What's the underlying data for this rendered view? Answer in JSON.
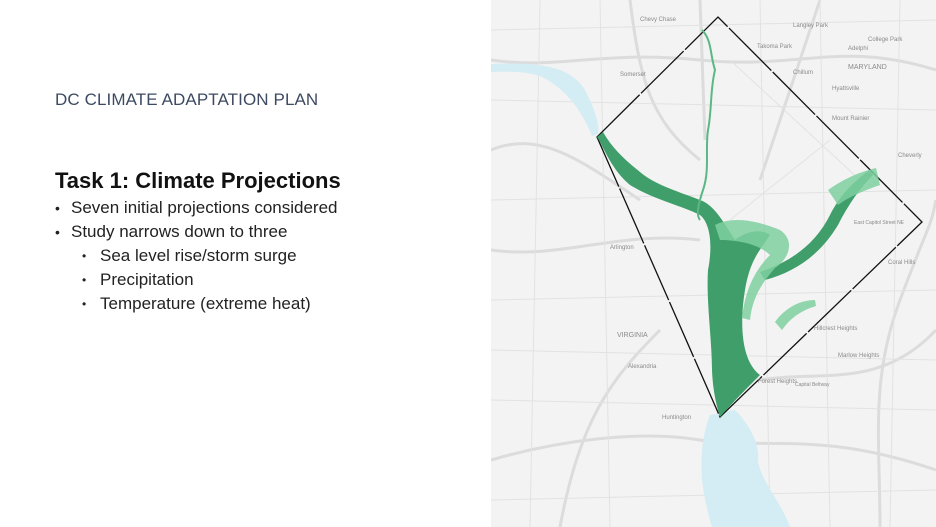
{
  "slide": {
    "plan_title": "DC CLIMATE ADAPTATION PLAN",
    "task_title": "Task 1: Climate Projections",
    "bullets": [
      "Seven initial projections considered",
      "Study narrows down to three"
    ],
    "sub_bullets": [
      "Sea level rise/storm surge",
      "Precipitation",
      "Temperature (extreme heat)"
    ]
  },
  "map": {
    "labels": {
      "chevy_chase": "Chevy Chase",
      "langley_park": "Langley Park",
      "takoma_park": "Takoma Park",
      "college_park": "College Park",
      "adelphi": "Adelphi",
      "chillum": "Chillum",
      "maryland": "MARYLAND",
      "hyattsville": "Hyattsville",
      "somerset": "Somerset",
      "mount_rainier": "Mount Rainier",
      "cheverly": "Cheverly",
      "arlington": "Arlington",
      "east_capitol": "East Capitol Street NE",
      "coral_hills": "Coral Hills",
      "virginia": "VIRGINIA",
      "hillcrest_heights": "Hillcrest Heights",
      "alexandria": "Alexandria",
      "marlow_heights": "Marlow Heights",
      "forest_heights": "Forest Heights",
      "capital_beltway": "Capital Beltway",
      "huntington": "Huntington"
    },
    "colors": {
      "flood_dark": "#3f9e6a",
      "flood_light": "#7fcf9f",
      "water": "#d4ecf3",
      "land": "#f3f3f3",
      "roads": "#d6d6d6",
      "boundary": "#111111"
    }
  }
}
